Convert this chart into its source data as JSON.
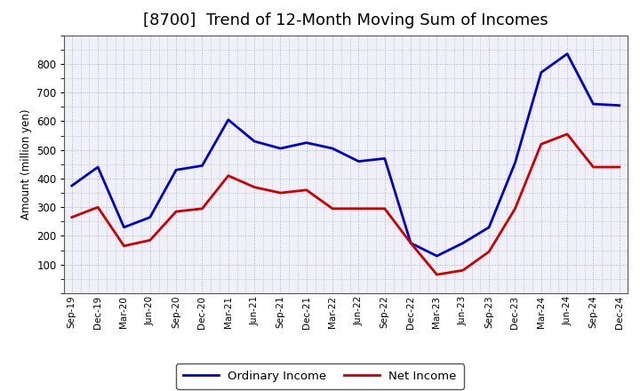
{
  "title": "[8700]  Trend of 12-Month Moving Sum of Incomes",
  "ylabel": "Amount (million yen)",
  "x_labels": [
    "Sep-19",
    "Dec-19",
    "Mar-20",
    "Jun-20",
    "Sep-20",
    "Dec-20",
    "Mar-21",
    "Jun-21",
    "Sep-21",
    "Dec-21",
    "Mar-22",
    "Jun-22",
    "Sep-22",
    "Dec-22",
    "Mar-23",
    "Jun-23",
    "Sep-23",
    "Dec-23",
    "Mar-24",
    "Jun-24",
    "Sep-24",
    "Dec-24"
  ],
  "ordinary_income": [
    375,
    440,
    230,
    265,
    430,
    445,
    605,
    530,
    505,
    525,
    505,
    460,
    470,
    175,
    130,
    175,
    230,
    455,
    770,
    835,
    660,
    655
  ],
  "net_income": [
    265,
    300,
    165,
    185,
    285,
    295,
    410,
    370,
    350,
    360,
    295,
    295,
    295,
    175,
    65,
    80,
    145,
    295,
    520,
    555,
    440,
    440
  ],
  "ylim": [
    0,
    900
  ],
  "yticks": [
    100,
    200,
    300,
    400,
    500,
    600,
    700,
    800
  ],
  "ordinary_income_color": "#0000CC",
  "net_income_color": "#CC0000",
  "line_width": 2.0,
  "background_color": "#FFFFFF",
  "plot_bg_color": "#F0F0F8",
  "grid_color": "#AAAACC",
  "title_fontsize": 13,
  "legend_labels": [
    "Ordinary Income",
    "Net Income"
  ]
}
